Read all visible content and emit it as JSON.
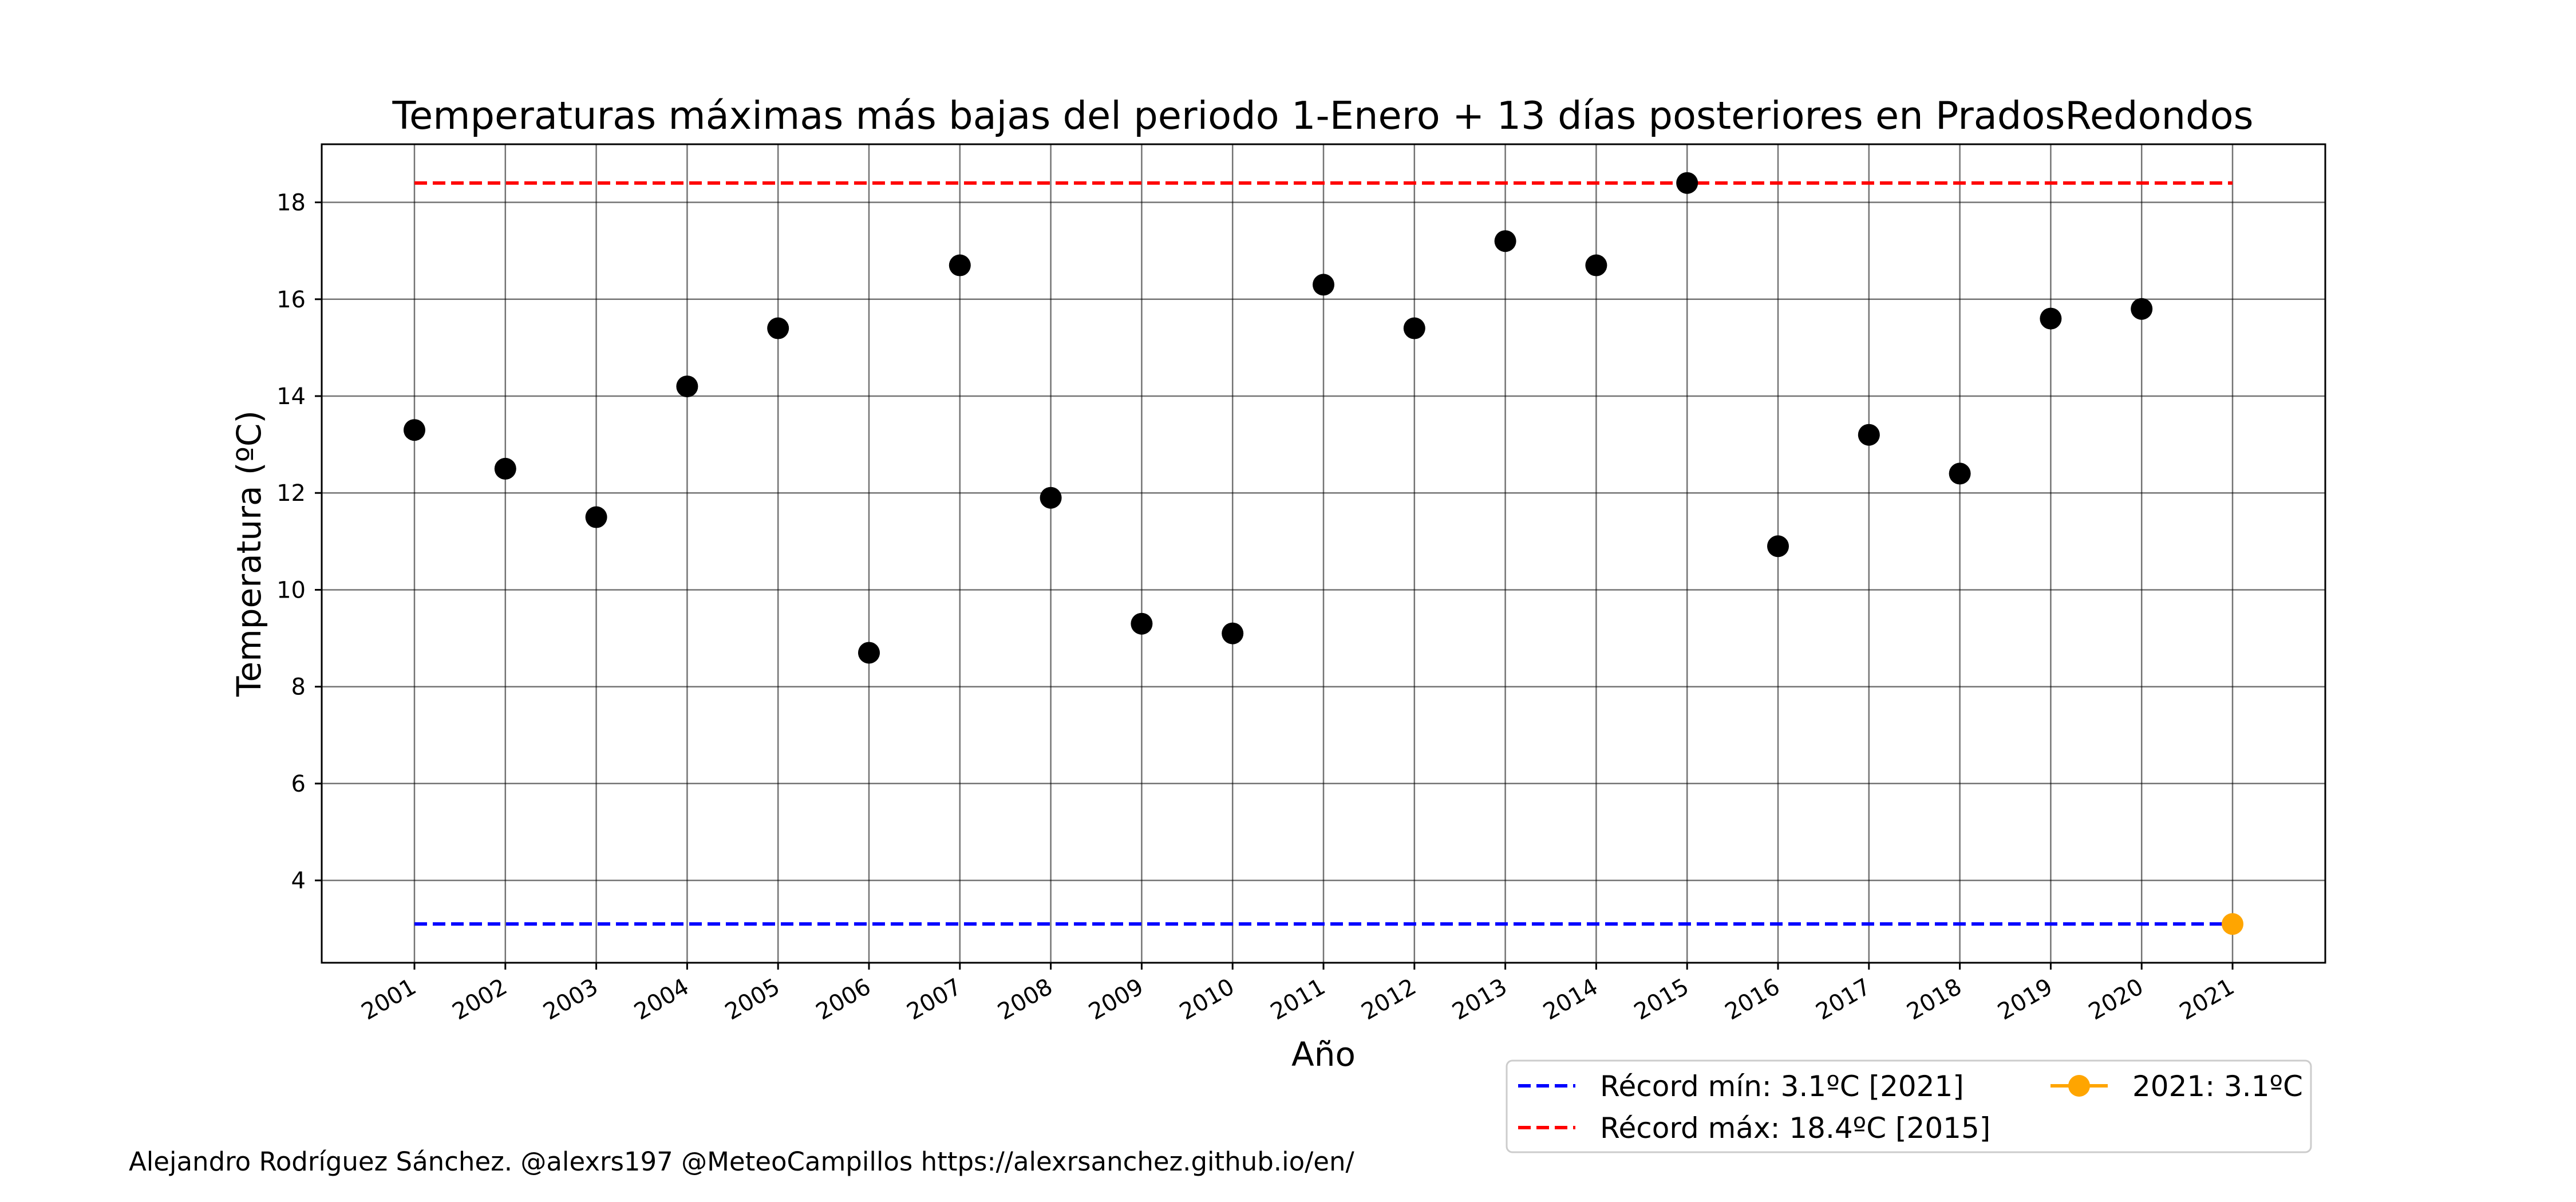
{
  "chart_data": {
    "type": "scatter",
    "title": "Temperaturas máximas más bajas del periodo 1-Enero + 13 días posteriores en PradosRedondos",
    "xlabel": "Año",
    "ylabel": "Temperatura (ºC)",
    "ylim": [
      2.3,
      19.2
    ],
    "xlim": [
      1999.98,
      2022.02
    ],
    "yticks": [
      4,
      6,
      8,
      10,
      12,
      14,
      16,
      18
    ],
    "grid": true,
    "categories": [
      "2001",
      "2002",
      "2003",
      "2004",
      "2005",
      "2006",
      "2007",
      "2008",
      "2009",
      "2010",
      "2011",
      "2012",
      "2013",
      "2014",
      "2015",
      "2016",
      "2017",
      "2018",
      "2019",
      "2020",
      "2021"
    ],
    "series": [
      {
        "color": "#000000",
        "x": [
          2001,
          2002,
          2003,
          2004,
          2005,
          2006,
          2007,
          2008,
          2009,
          2010,
          2011,
          2012,
          2013,
          2014,
          2015,
          2016,
          2017,
          2018,
          2019,
          2020
        ],
        "values": [
          13.3,
          12.5,
          11.5,
          14.2,
          15.4,
          8.7,
          16.7,
          11.9,
          9.3,
          9.1,
          16.3,
          15.4,
          17.2,
          16.7,
          18.4,
          10.9,
          13.2,
          12.4,
          15.6,
          15.8
        ]
      },
      {
        "name": "2021: 3.1ºC",
        "color": "#FFA500",
        "x": [
          2021
        ],
        "values": [
          3.1
        ]
      }
    ],
    "reference_lines": [
      {
        "name": "Récord mín: 3.1ºC [2021]",
        "value": 3.1,
        "color": "#0000FF",
        "style": "dashed",
        "x_range": [
          2001,
          2021
        ]
      },
      {
        "name": "Récord máx: 18.4ºC [2015]",
        "value": 18.4,
        "color": "#FF0000",
        "style": "dashed",
        "x_range": [
          2001,
          2021
        ]
      }
    ],
    "legend": {
      "placement": "bottom-right",
      "entries": [
        {
          "label": "Récord mín: 3.1ºC [2021]",
          "color": "#0000FF",
          "style": "dashed"
        },
        {
          "label": "Récord máx: 18.4ºC [2015]",
          "color": "#FF0000",
          "style": "dashed"
        },
        {
          "label": "2021: 3.1ºC",
          "color": "#FFA500",
          "style": "line-marker"
        }
      ]
    }
  },
  "footer": {
    "credit": "Alejandro Rodríguez Sánchez. @alexrs197 @MeteoCampillos   https://alexrsanchez.github.io/en/"
  }
}
